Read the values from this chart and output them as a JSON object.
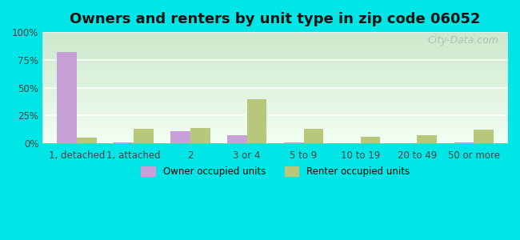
{
  "title": "Owners and renters by unit type in zip code 06052",
  "categories": [
    "1, detached",
    "1, attached",
    "2",
    "3 or 4",
    "5 to 9",
    "10 to 19",
    "20 to 49",
    "50 or more"
  ],
  "owner_values": [
    82,
    1,
    11,
    7,
    1,
    0,
    0,
    1
  ],
  "renter_values": [
    5,
    13,
    14,
    40,
    13,
    6,
    7,
    12
  ],
  "owner_color": "#c8a0d8",
  "renter_color": "#b8c87a",
  "background_color": "#00e5e5",
  "title_fontsize": 13,
  "bar_width": 0.35,
  "ylim": [
    0,
    100
  ],
  "yticks": [
    0,
    25,
    50,
    75,
    100
  ],
  "ytick_labels": [
    "0%",
    "25%",
    "50%",
    "75%",
    "100%"
  ],
  "legend_owner": "Owner occupied units",
  "legend_renter": "Renter occupied units",
  "watermark": "City-Data.com"
}
